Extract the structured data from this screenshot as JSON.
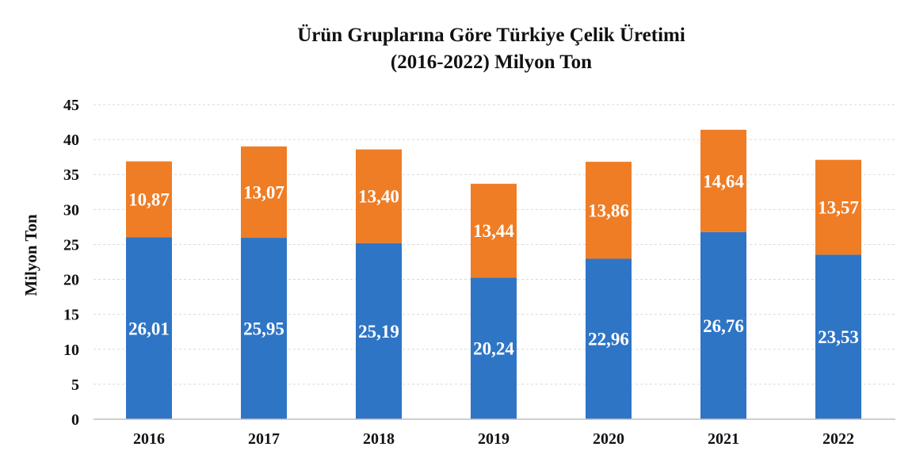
{
  "chart_data": {
    "type": "bar",
    "stacked": true,
    "title": [
      "Ürün Gruplarına Göre Türkiye Çelik Üretimi",
      "(2016-2022) Milyon Ton"
    ],
    "xlabel": "",
    "ylabel": "Milyon Ton",
    "ylim": [
      0,
      45
    ],
    "yticks": [
      "0",
      "5",
      "10",
      "15",
      "20",
      "25",
      "30",
      "35",
      "40",
      "45"
    ],
    "categories": [
      "2016",
      "2017",
      "2018",
      "2019",
      "2020",
      "2021",
      "2022"
    ],
    "grid": true,
    "legend": "none",
    "series": [
      {
        "color": "#2e75c6",
        "values": [
          26.01,
          25.95,
          25.19,
          20.24,
          22.96,
          26.76,
          23.53
        ],
        "labels": [
          "26,01",
          "25,95",
          "25,19",
          "20,24",
          "22,96",
          "26,76",
          "23,53"
        ]
      },
      {
        "color": "#ef7d25",
        "values": [
          10.87,
          13.07,
          13.4,
          13.44,
          13.86,
          14.64,
          13.57
        ],
        "labels": [
          "10,87",
          "13,07",
          "13,40",
          "13,44",
          "13,86",
          "14,64",
          "13,57"
        ]
      }
    ]
  }
}
